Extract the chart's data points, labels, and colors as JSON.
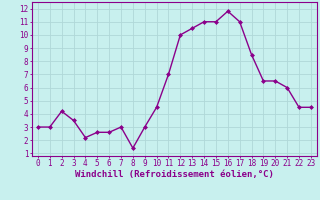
{
  "x": [
    0,
    1,
    2,
    3,
    4,
    5,
    6,
    7,
    8,
    9,
    10,
    11,
    12,
    13,
    14,
    15,
    16,
    17,
    18,
    19,
    20,
    21,
    22,
    23
  ],
  "y": [
    3.0,
    3.0,
    4.2,
    3.5,
    2.2,
    2.6,
    2.6,
    3.0,
    1.4,
    3.0,
    4.5,
    7.0,
    10.0,
    10.5,
    11.0,
    11.0,
    11.8,
    11.0,
    8.5,
    6.5,
    6.5,
    6.0,
    4.5,
    4.5
  ],
  "line_color": "#8b008b",
  "marker": "D",
  "marker_size": 2,
  "line_width": 1.0,
  "bg_color": "#c8f0ee",
  "grid_color": "#b0d8d8",
  "xlabel": "Windchill (Refroidissement éolien,°C)",
  "xlabel_color": "#8b008b",
  "ylabel_ticks": [
    1,
    2,
    3,
    4,
    5,
    6,
    7,
    8,
    9,
    10,
    11,
    12
  ],
  "xticks": [
    0,
    1,
    2,
    3,
    4,
    5,
    6,
    7,
    8,
    9,
    10,
    11,
    12,
    13,
    14,
    15,
    16,
    17,
    18,
    19,
    20,
    21,
    22,
    23
  ],
  "ylim": [
    0.8,
    12.5
  ],
  "xlim": [
    -0.5,
    23.5
  ],
  "tick_color": "#8b008b",
  "tick_label_color": "#8b008b",
  "spine_color": "#8b008b",
  "font_size_ticks": 5.5,
  "font_size_xlabel": 6.5
}
